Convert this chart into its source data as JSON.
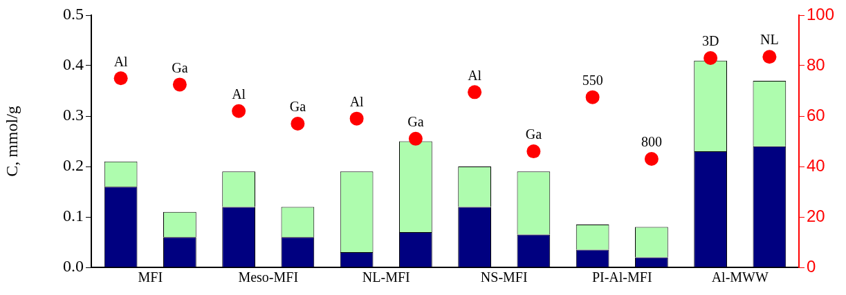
{
  "chart_data": {
    "type": "bar",
    "stacked": true,
    "ylabel": "C, mmol/g",
    "categories": [
      null,
      null,
      null,
      null,
      null,
      null,
      null,
      null,
      null,
      null,
      null,
      null
    ],
    "series": [
      {
        "color": "#000080",
        "values": [
          0.16,
          0.06,
          0.12,
          0.06,
          0.03,
          0.07,
          0.12,
          0.065,
          0.035,
          0.02,
          0.23,
          0.24
        ]
      },
      {
        "color": "#aefcae",
        "values": [
          0.05,
          0.05,
          0.07,
          0.06,
          0.16,
          0.18,
          0.08,
          0.125,
          0.05,
          0.06,
          0.18,
          0.13
        ]
      },
      {
        "type": "scatter",
        "axis": "y2",
        "color": "#ff0000",
        "values": [
          75,
          72.5,
          62,
          57,
          59,
          51,
          69.5,
          46,
          67.5,
          43,
          83,
          83.5
        ]
      }
    ],
    "annotations": [
      "MFI",
      "Meso-MFI",
      "NL-MFI",
      "NS-MFI",
      "PI-Al-MFI",
      "Al-MWW",
      "Al",
      "Ga",
      "Al",
      "Ga",
      "Al",
      "Ga",
      "Al",
      "Ga",
      "550",
      "800",
      "3D",
      "NL"
    ],
    "ylim": [
      0,
      0.5
    ],
    "yticks": [
      {
        "value": 0,
        "label": "0.0"
      },
      0.1,
      0.2,
      0.3,
      0.4,
      0.5
    ],
    "y2lim": [
      0,
      100
    ],
    "y2ticks": [
      0,
      20,
      40,
      60,
      80,
      100
    ],
    "marker": "circle",
    "grid": false,
    "legend": false
  }
}
